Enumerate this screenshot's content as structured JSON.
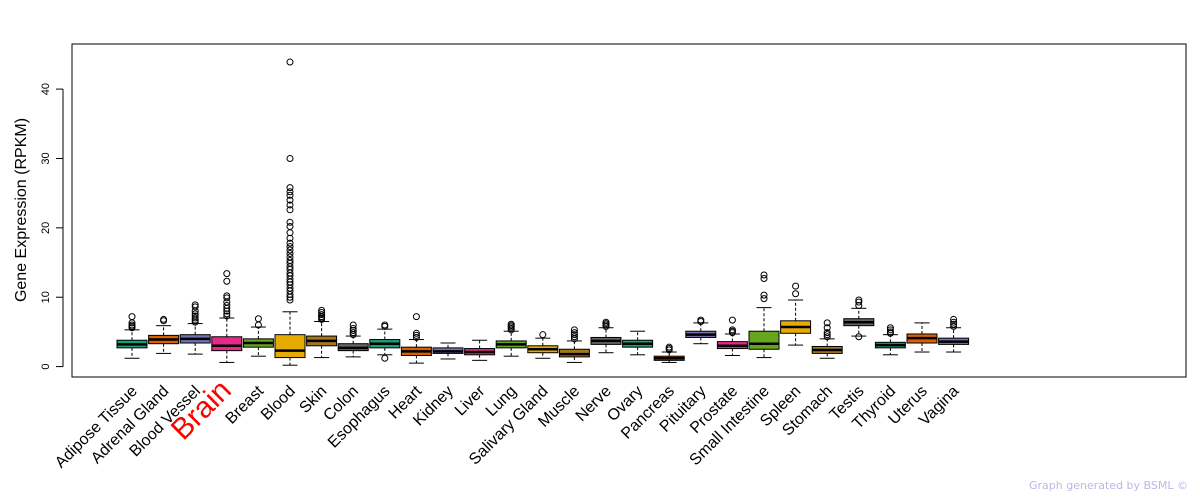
{
  "chart_data": {
    "type": "boxplot",
    "ylabel": "Gene Expression (RPKM)",
    "ylim": [
      -1.5,
      46.5
    ],
    "yticks": [
      0,
      10,
      20,
      30,
      40
    ],
    "highlight_category": "Brain",
    "highlight_color": "#ff0000",
    "categories": [
      {
        "name": "Adipose Tissue",
        "color": "#1a9e77",
        "min": 1.2,
        "q1": 2.7,
        "median": 3.2,
        "q3": 3.8,
        "max": 5.3,
        "outliers": [
          5.6,
          5.8,
          6.0,
          6.3,
          7.2
        ]
      },
      {
        "name": "Adrenal Gland",
        "color": "#d95f02",
        "min": 1.9,
        "q1": 3.3,
        "median": 3.9,
        "q3": 4.5,
        "max": 5.9,
        "outliers": [
          6.6,
          6.8
        ]
      },
      {
        "name": "Blood Vessel",
        "color": "#7570b3",
        "min": 1.8,
        "q1": 3.4,
        "median": 4.0,
        "q3": 4.6,
        "max": 6.2,
        "outliers": [
          6.4,
          6.7,
          7.0,
          7.3,
          7.6,
          8.0,
          8.6,
          8.9
        ]
      },
      {
        "name": "Brain",
        "color": "#e7298a",
        "min": 0.6,
        "q1": 2.3,
        "median": 3.0,
        "q3": 4.3,
        "max": 7.0,
        "outliers": [
          7.3,
          7.6,
          8.0,
          8.4,
          8.8,
          9.3,
          9.9,
          10.2,
          12.3,
          13.4
        ]
      },
      {
        "name": "Breast",
        "color": "#66a61e",
        "min": 1.5,
        "q1": 2.8,
        "median": 3.4,
        "q3": 4.0,
        "max": 5.7,
        "outliers": [
          6.0,
          6.9
        ]
      },
      {
        "name": "Blood",
        "color": "#e6ab02",
        "min": 0.2,
        "q1": 1.3,
        "median": 2.3,
        "q3": 4.6,
        "max": 7.9,
        "outliers": [
          9.6,
          10.0,
          10.4,
          10.9,
          11.3,
          11.8,
          12.2,
          12.6,
          13.1,
          13.5,
          14.0,
          14.4,
          14.9,
          15.3,
          15.8,
          16.3,
          16.8,
          17.3,
          17.8,
          18.5,
          19.3,
          20.2,
          20.8,
          22.6,
          23.3,
          24.0,
          24.7,
          25.2,
          25.8,
          30.0,
          43.9
        ]
      },
      {
        "name": "Skin",
        "color": "#a6761d",
        "min": 1.3,
        "q1": 3.0,
        "median": 3.7,
        "q3": 4.4,
        "max": 6.5,
        "outliers": [
          6.8,
          7.0,
          7.2,
          7.5,
          7.8,
          8.1
        ]
      },
      {
        "name": "Colon",
        "color": "#666666",
        "min": 1.4,
        "q1": 2.3,
        "median": 2.7,
        "q3": 3.3,
        "max": 4.4,
        "outliers": [
          4.6,
          4.9,
          5.2,
          5.5,
          6.0
        ]
      },
      {
        "name": "Esophagus",
        "color": "#1a9e77",
        "min": 1.7,
        "q1": 2.7,
        "median": 3.3,
        "q3": 3.9,
        "max": 5.4,
        "outliers": [
          1.2,
          5.8,
          6.0
        ]
      },
      {
        "name": "Heart",
        "color": "#d95f02",
        "min": 0.5,
        "q1": 1.6,
        "median": 2.2,
        "q3": 2.8,
        "max": 3.9,
        "outliers": [
          4.2,
          4.5,
          4.8,
          7.2
        ]
      },
      {
        "name": "Kidney",
        "color": "#7570b3",
        "min": 1.1,
        "q1": 1.9,
        "median": 2.2,
        "q3": 2.7,
        "max": 3.4,
        "outliers": []
      },
      {
        "name": "Liver",
        "color": "#e7298a",
        "min": 0.9,
        "q1": 1.7,
        "median": 2.1,
        "q3": 2.6,
        "max": 3.8,
        "outliers": []
      },
      {
        "name": "Lung",
        "color": "#66a61e",
        "min": 1.5,
        "q1": 2.7,
        "median": 3.2,
        "q3": 3.7,
        "max": 5.1,
        "outliers": [
          5.3,
          5.5,
          5.7,
          5.9,
          6.1
        ]
      },
      {
        "name": "Salivary Gland",
        "color": "#e6ab02",
        "min": 1.2,
        "q1": 2.0,
        "median": 2.5,
        "q3": 3.0,
        "max": 4.1,
        "outliers": [
          4.6
        ]
      },
      {
        "name": "Muscle",
        "color": "#a6761d",
        "min": 0.6,
        "q1": 1.4,
        "median": 1.8,
        "q3": 2.5,
        "max": 3.7,
        "outliers": [
          4.0,
          4.3,
          4.6,
          4.9,
          5.3
        ]
      },
      {
        "name": "Nerve",
        "color": "#666666",
        "min": 2.0,
        "q1": 3.2,
        "median": 3.7,
        "q3": 4.2,
        "max": 5.6,
        "outliers": [
          5.8,
          6.0,
          6.2,
          6.4
        ]
      },
      {
        "name": "Ovary",
        "color": "#1a9e77",
        "min": 1.7,
        "q1": 2.8,
        "median": 3.3,
        "q3": 3.8,
        "max": 5.1,
        "outliers": []
      },
      {
        "name": "Pancreas",
        "color": "#d95f02",
        "min": 0.6,
        "q1": 0.9,
        "median": 1.2,
        "q3": 1.5,
        "max": 2.1,
        "outliers": [
          2.4,
          2.6,
          2.8
        ]
      },
      {
        "name": "Pituitary",
        "color": "#7570b3",
        "min": 3.3,
        "q1": 4.2,
        "median": 4.6,
        "q3": 5.1,
        "max": 6.3,
        "outliers": [
          6.5,
          6.7
        ]
      },
      {
        "name": "Prostate",
        "color": "#e7298a",
        "min": 1.6,
        "q1": 2.6,
        "median": 3.0,
        "q3": 3.6,
        "max": 4.7,
        "outliers": [
          4.9,
          5.1,
          5.3,
          6.7
        ]
      },
      {
        "name": "Small Intestine",
        "color": "#66a61e",
        "min": 1.3,
        "q1": 2.5,
        "median": 3.3,
        "q3": 5.1,
        "max": 8.5,
        "outliers": [
          9.8,
          10.3,
          12.7,
          13.2
        ]
      },
      {
        "name": "Spleen",
        "color": "#e6ab02",
        "min": 3.1,
        "q1": 4.8,
        "median": 5.7,
        "q3": 6.6,
        "max": 9.6,
        "outliers": [
          10.5,
          11.6
        ]
      },
      {
        "name": "Stomach",
        "color": "#a6761d",
        "min": 1.2,
        "q1": 1.9,
        "median": 2.4,
        "q3": 2.9,
        "max": 4.0,
        "outliers": [
          4.3,
          4.6,
          4.9,
          5.6,
          6.3
        ]
      },
      {
        "name": "Testis",
        "color": "#666666",
        "min": 4.4,
        "q1": 5.9,
        "median": 6.4,
        "q3": 6.9,
        "max": 8.4,
        "outliers": [
          4.3,
          8.8,
          9.3,
          9.6
        ]
      },
      {
        "name": "Thyroid",
        "color": "#1a9e77",
        "min": 1.7,
        "q1": 2.7,
        "median": 3.1,
        "q3": 3.5,
        "max": 4.6,
        "outliers": [
          4.8,
          5.0,
          5.3,
          5.6
        ]
      },
      {
        "name": "Uterus",
        "color": "#d95f02",
        "min": 2.1,
        "q1": 3.4,
        "median": 4.1,
        "q3": 4.7,
        "max": 6.3,
        "outliers": []
      },
      {
        "name": "Vagina",
        "color": "#7570b3",
        "min": 2.1,
        "q1": 3.2,
        "median": 3.6,
        "q3": 4.1,
        "max": 5.6,
        "outliers": [
          5.8,
          6.1,
          6.4,
          6.8
        ]
      }
    ]
  },
  "footer": {
    "text": "Graph generated by BSML ©"
  }
}
